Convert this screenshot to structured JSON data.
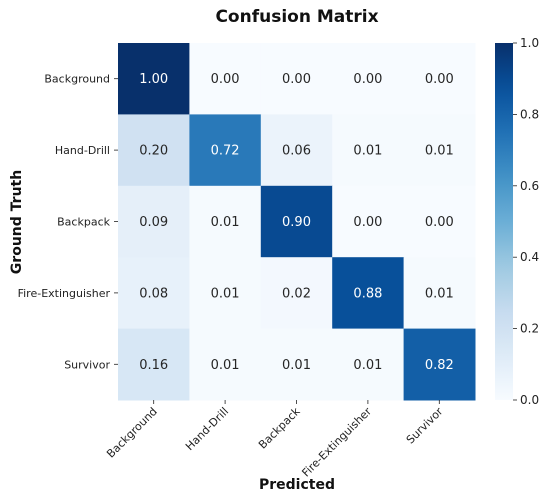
{
  "chart_data": {
    "type": "heatmap",
    "title": "Confusion Matrix",
    "xlabel": "Predicted",
    "ylabel": "Ground Truth",
    "x_categories": [
      "Background",
      "Hand-Drill",
      "Backpack",
      "Fire-Extinguisher",
      "Survivor"
    ],
    "y_categories": [
      "Background",
      "Hand-Drill",
      "Backpack",
      "Fire-Extinguisher",
      "Survivor"
    ],
    "values": [
      [
        1.0,
        0.0,
        0.0,
        0.0,
        0.0
      ],
      [
        0.2,
        0.72,
        0.06,
        0.01,
        0.01
      ],
      [
        0.09,
        0.01,
        0.9,
        0.0,
        0.0
      ],
      [
        0.08,
        0.01,
        0.02,
        0.88,
        0.01
      ],
      [
        0.16,
        0.01,
        0.01,
        0.01,
        0.82
      ]
    ],
    "value_labels": [
      [
        "1.00",
        "0.00",
        "0.00",
        "0.00",
        "0.00"
      ],
      [
        "0.20",
        "0.72",
        "0.06",
        "0.01",
        "0.01"
      ],
      [
        "0.09",
        "0.01",
        "0.90",
        "0.00",
        "0.00"
      ],
      [
        "0.08",
        "0.01",
        "0.02",
        "0.88",
        "0.01"
      ],
      [
        "0.16",
        "0.01",
        "0.01",
        "0.01",
        "0.82"
      ]
    ],
    "colorbar": {
      "range": [
        0,
        1
      ],
      "ticks": [
        0.0,
        0.2,
        0.4,
        0.6,
        0.8,
        1.0
      ],
      "tick_labels": [
        "0.0",
        "0.2",
        "0.4",
        "0.6",
        "0.8",
        "1.0"
      ]
    },
    "colormap": "Blues",
    "colors": {
      "low": "#f7fbff",
      "high": "#08306b"
    }
  }
}
